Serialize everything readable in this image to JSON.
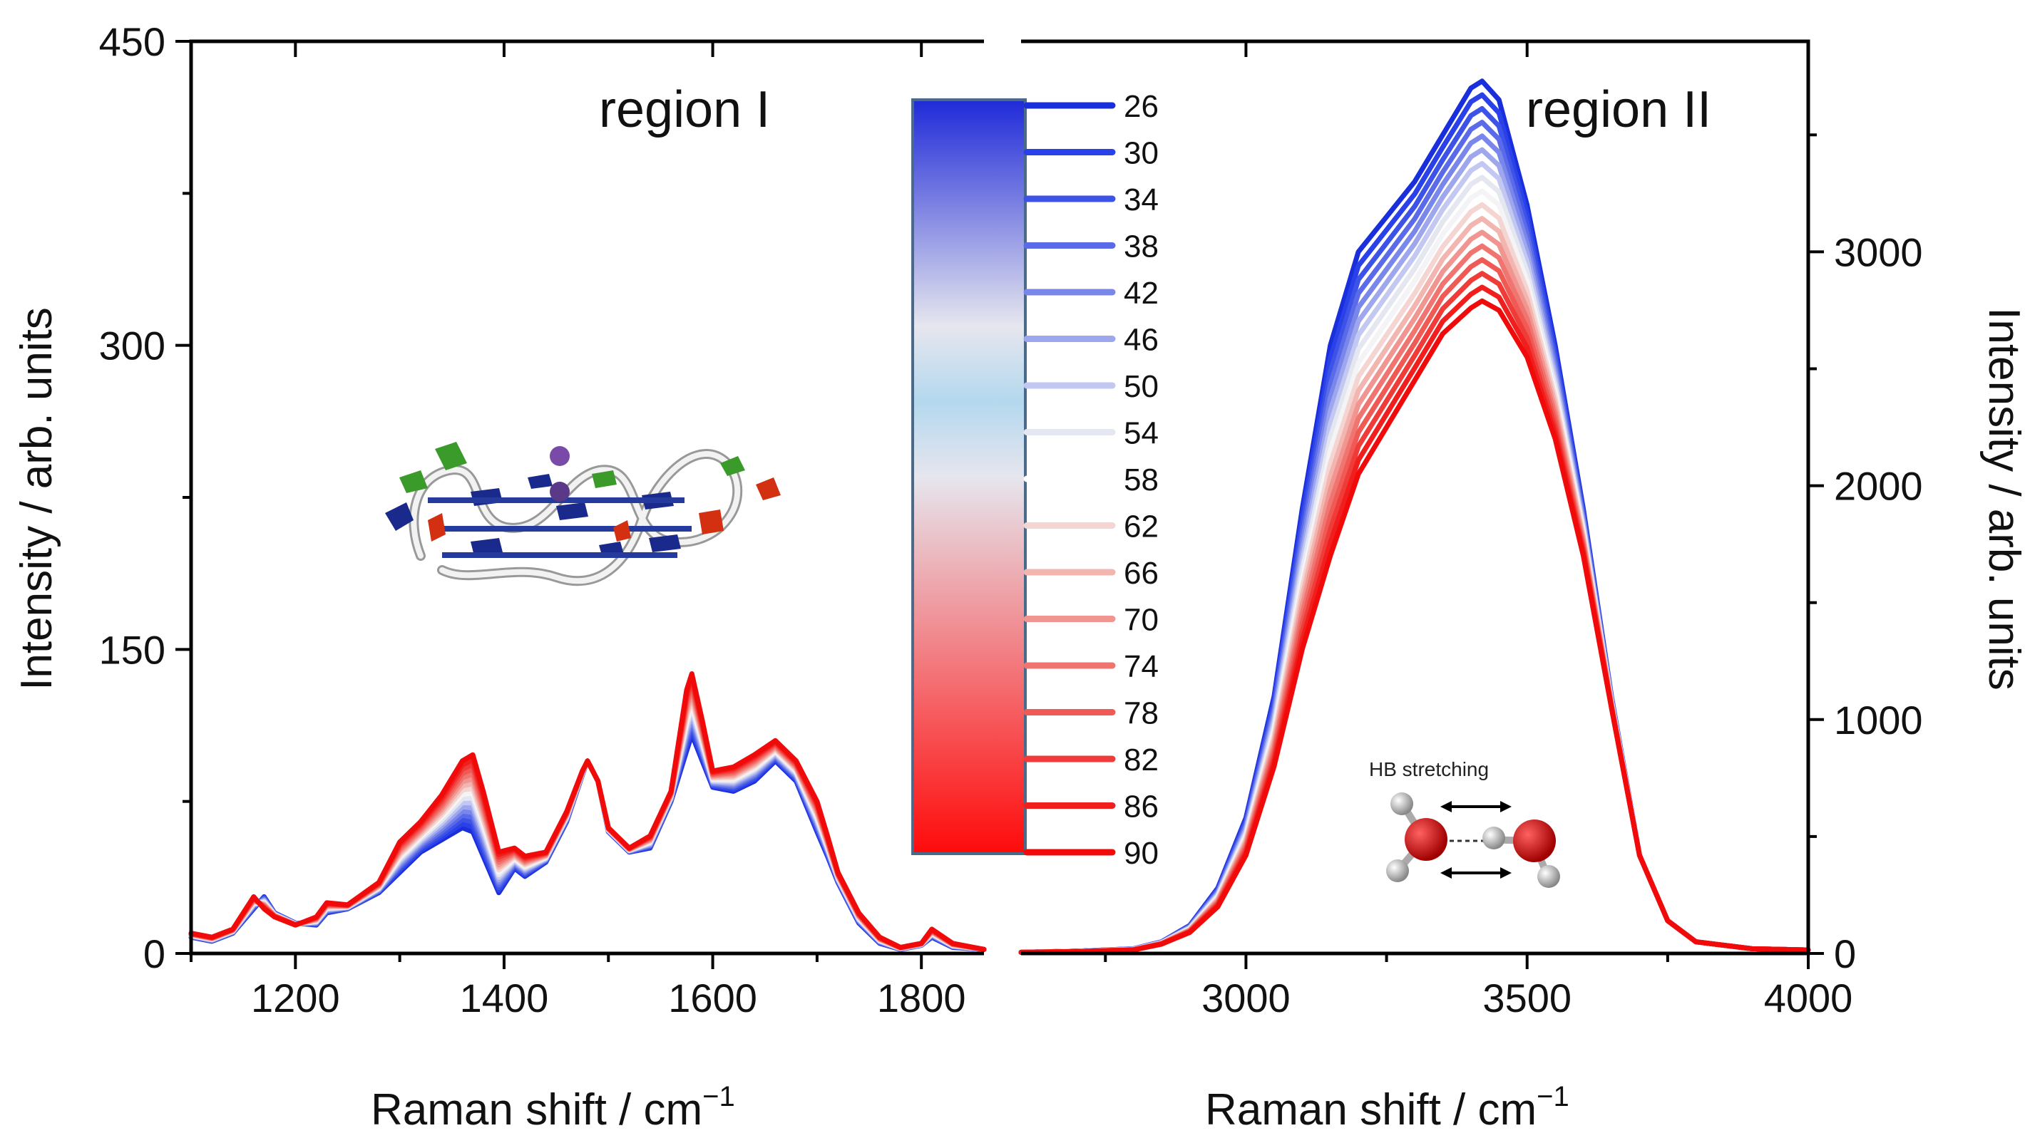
{
  "chart_data": [
    {
      "type": "line",
      "panel": "left",
      "title": "region I",
      "xlabel": "Raman shift / cm",
      "xlabel_sup": "−1",
      "ylabel": "Intensity / arb. units",
      "xlim": [
        1100,
        1860
      ],
      "ylim": [
        0,
        450
      ],
      "xticks": [
        1200,
        1400,
        1600,
        1800
      ],
      "xtick_labels": [
        "1200",
        "1400",
        "1600",
        "1800"
      ],
      "yticks": [
        0,
        150,
        300,
        450
      ],
      "ytick_labels": [
        "0",
        "150",
        "300",
        "450"
      ],
      "series_base": {
        "x": [
          1100,
          1120,
          1140,
          1160,
          1170,
          1180,
          1200,
          1220,
          1230,
          1250,
          1280,
          1300,
          1320,
          1340,
          1360,
          1370,
          1380,
          1395,
          1410,
          1420,
          1440,
          1460,
          1475,
          1480,
          1490,
          1500,
          1520,
          1540,
          1560,
          1575,
          1580,
          1590,
          1600,
          1620,
          1640,
          1660,
          1680,
          1700,
          1710,
          1720,
          1740,
          1760,
          1780,
          1800,
          1810,
          1830,
          1860
        ],
        "cold": [
          8,
          6,
          10,
          22,
          28,
          20,
          15,
          14,
          20,
          22,
          30,
          40,
          50,
          56,
          62,
          60,
          48,
          30,
          42,
          38,
          45,
          65,
          88,
          95,
          85,
          60,
          50,
          52,
          75,
          100,
          108,
          95,
          82,
          80,
          85,
          95,
          85,
          60,
          48,
          35,
          15,
          5,
          2,
          4,
          8,
          3,
          2
        ],
        "hot": [
          10,
          8,
          12,
          28,
          22,
          18,
          14,
          18,
          25,
          24,
          35,
          55,
          65,
          78,
          95,
          98,
          80,
          50,
          52,
          48,
          50,
          70,
          90,
          95,
          85,
          62,
          52,
          58,
          80,
          130,
          138,
          115,
          90,
          92,
          98,
          105,
          95,
          75,
          58,
          40,
          20,
          8,
          3,
          5,
          12,
          5,
          2
        ]
      }
    },
    {
      "type": "line",
      "panel": "right",
      "title": "region II",
      "xlabel": "Raman shift / cm",
      "xlabel_sup": "−1",
      "ylabel": "Intensity / arb. units",
      "xlim": [
        2600,
        4000
      ],
      "ylim": [
        0,
        3900
      ],
      "xticks": [
        3000,
        3500,
        4000
      ],
      "xtick_labels": [
        "3000",
        "3500",
        "4000"
      ],
      "yticks": [
        0,
        1000,
        2000,
        3000
      ],
      "ytick_labels": [
        "0",
        "1000",
        "2000",
        "3000"
      ],
      "series_base": {
        "x": [
          2600,
          2700,
          2800,
          2850,
          2900,
          2950,
          3000,
          3050,
          3100,
          3150,
          3200,
          3250,
          3300,
          3350,
          3400,
          3420,
          3450,
          3500,
          3550,
          3600,
          3650,
          3700,
          3750,
          3800,
          3900,
          4000
        ],
        "cold": [
          5,
          10,
          20,
          50,
          120,
          280,
          580,
          1100,
          1900,
          2600,
          3000,
          3150,
          3300,
          3500,
          3700,
          3730,
          3650,
          3200,
          2600,
          1900,
          1100,
          420,
          140,
          50,
          20,
          15
        ],
        "hot": [
          5,
          8,
          15,
          40,
          90,
          200,
          420,
          800,
          1300,
          1700,
          2050,
          2250,
          2450,
          2650,
          2760,
          2790,
          2750,
          2550,
          2200,
          1700,
          1050,
          420,
          140,
          50,
          20,
          15
        ]
      }
    }
  ],
  "legend": {
    "labels": [
      "26",
      "30",
      "34",
      "38",
      "42",
      "46",
      "50",
      "54",
      "58",
      "62",
      "66",
      "70",
      "74",
      "78",
      "82",
      "86",
      "90"
    ],
    "colors": [
      "#1a2fdc",
      "#2a40e8",
      "#3d52e6",
      "#5a6ae8",
      "#7a87ea",
      "#9ea7ee",
      "#c2c8f2",
      "#e4e6f0",
      "#ffffff",
      "#f5d5d2",
      "#f2b5b0",
      "#f09590",
      "#f07570",
      "#f05a55",
      "#f03c38",
      "#f01e1c",
      "#f00a0a"
    ]
  },
  "colorbar": {
    "top_color": "#2233dd",
    "mid_color": "#e8e8ec",
    "mid2_color": "#b0d4ec",
    "bottom_color": "#ff1010"
  },
  "insets": {
    "left_icon": "g-quadruplex-structure-icon",
    "right_icon": "water-dimer-molecule-icon",
    "right_caption": "HB stretching"
  }
}
